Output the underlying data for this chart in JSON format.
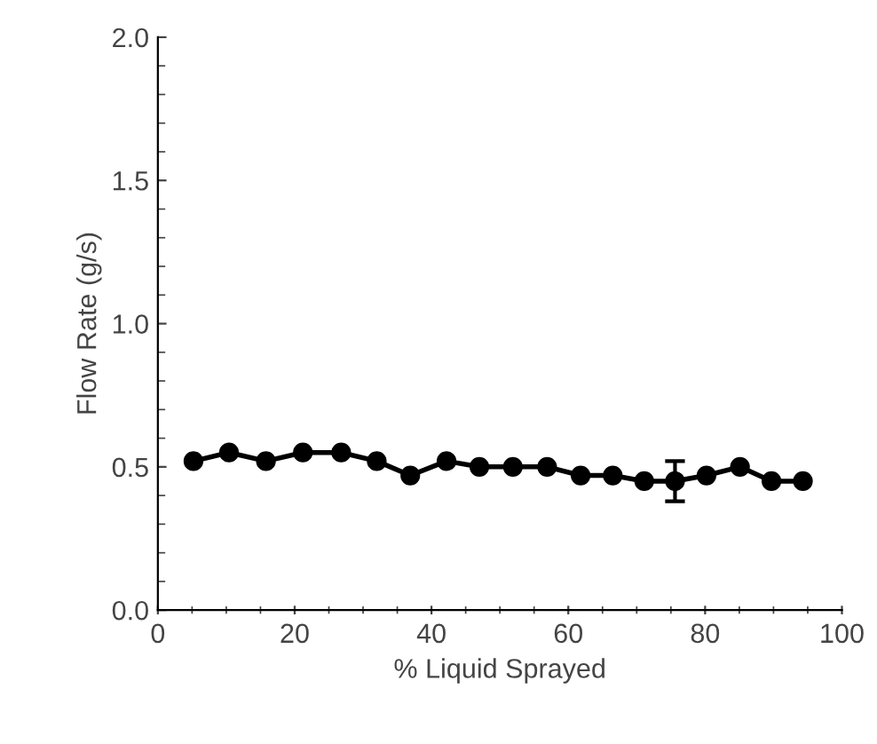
{
  "chart_data": {
    "type": "line",
    "xlabel": "% Liquid Sprayed",
    "ylabel": "Flow Rate (g/s)",
    "xlim": [
      0,
      100
    ],
    "xticks": [
      0,
      20,
      40,
      60,
      80,
      100
    ],
    "ylim": [
      0,
      2
    ],
    "yticks": [
      {
        "value": 0,
        "label": "0.0"
      },
      {
        "value": 0.5,
        "label": "0.5"
      },
      {
        "value": 1,
        "label": "1.0"
      },
      {
        "value": 1.5,
        "label": "1.5"
      },
      {
        "value": 2,
        "label": "2.0"
      }
    ],
    "marker": "circle",
    "line_style": "solid",
    "grid": false,
    "legend": false,
    "series": [
      {
        "color": "#000000",
        "x": [
          5.2,
          10.4,
          15.8,
          21.2,
          26.8,
          32,
          36.9,
          42.2,
          47,
          51.9,
          56.9,
          61.8,
          66.5,
          71.1,
          75.6,
          80.2,
          85.1,
          89.7,
          94.3
        ],
        "values": [
          0.52,
          0.55,
          0.52,
          0.55,
          0.55,
          0.52,
          0.47,
          0.52,
          0.5,
          0.5,
          0.5,
          0.47,
          0.47,
          0.45,
          0.45,
          0.47,
          0.5,
          0.45,
          0.45
        ],
        "errors": [
          null,
          null,
          null,
          null,
          null,
          null,
          null,
          null,
          null,
          null,
          null,
          null,
          null,
          null,
          0.07,
          null,
          null,
          null,
          null
        ]
      }
    ]
  }
}
